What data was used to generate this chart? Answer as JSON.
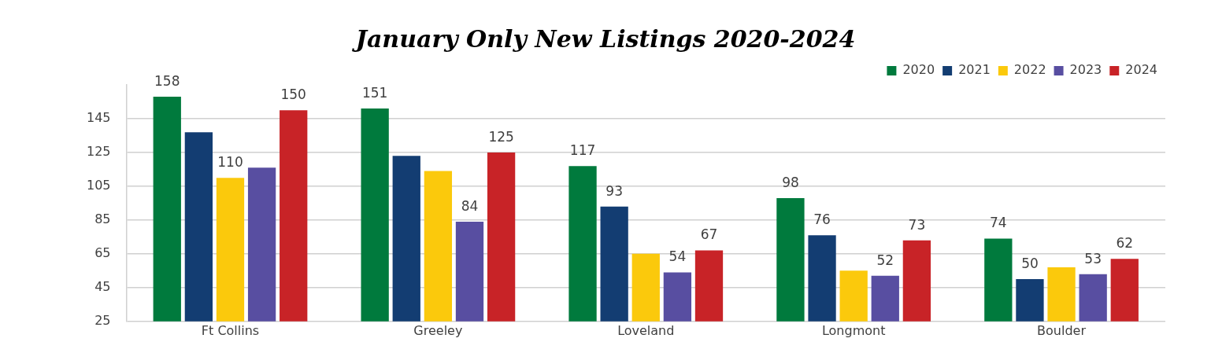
{
  "chart_data": {
    "type": "bar",
    "title": "January Only New Listings 2020-2024",
    "categories": [
      "Ft Collins",
      "Greeley",
      "Loveland",
      "Longmont",
      "Boulder"
    ],
    "series": [
      {
        "name": "2020",
        "color": "#007a3d",
        "values": [
          158,
          151,
          117,
          98,
          74
        ],
        "value_labels": [
          "158",
          "151",
          "117",
          "98",
          "74"
        ]
      },
      {
        "name": "2021",
        "color": "#133d72",
        "values": [
          137,
          123,
          93,
          76,
          50
        ],
        "value_labels": [
          null,
          null,
          "93",
          "76",
          "50"
        ]
      },
      {
        "name": "2022",
        "color": "#fbc90c",
        "values": [
          110,
          114,
          65,
          55,
          57
        ],
        "value_labels": [
          "110",
          null,
          null,
          null,
          null
        ]
      },
      {
        "name": "2023",
        "color": "#584ea1",
        "values": [
          116,
          84,
          54,
          52,
          53
        ],
        "value_labels": [
          null,
          "84",
          "54",
          "52",
          "53"
        ]
      },
      {
        "name": "2024",
        "color": "#c82327",
        "values": [
          150,
          125,
          67,
          73,
          62
        ],
        "value_labels": [
          "150",
          "125",
          "67",
          "73",
          "62"
        ]
      }
    ],
    "ylim": [
      25,
      165
    ],
    "yticks": [
      25,
      45,
      65,
      85,
      105,
      125,
      145
    ],
    "grid": "y",
    "legend": "top right"
  }
}
